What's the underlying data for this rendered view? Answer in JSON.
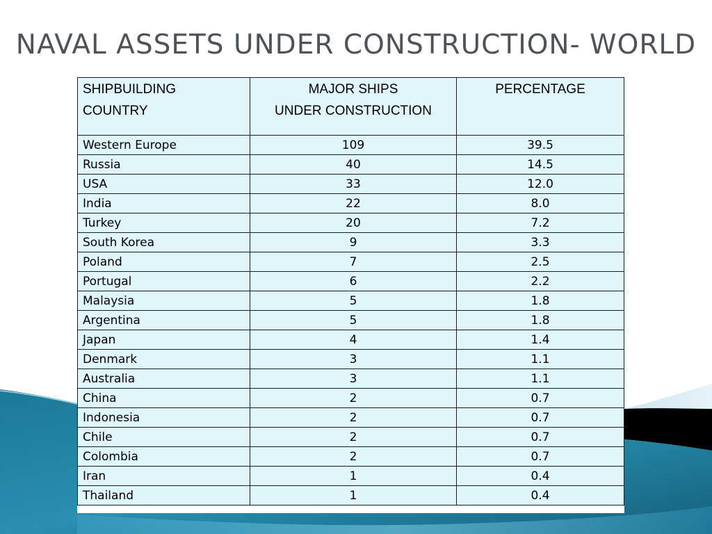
{
  "title": "NAVAL ASSETS UNDER CONSTRUCTION- WORLD",
  "colors": {
    "title": "#4f5358",
    "table_background": "#dff6fb",
    "table_border": "#1d1d1d",
    "wave_dark": "#1a6f8c",
    "wave_light": "#4fb4d4",
    "black_band": "#000000"
  },
  "table": {
    "headers": {
      "country": [
        "SHIPBUILDING",
        "COUNTRY"
      ],
      "ships": [
        "MAJOR SHIPS",
        "UNDER CONSTRUCTION"
      ],
      "percentage": [
        "PERCENTAGE"
      ]
    },
    "rows": [
      {
        "country": "Western Europe",
        "ships": "109",
        "percentage": "39.5"
      },
      {
        "country": "Russia",
        "ships": "40",
        "percentage": "14.5"
      },
      {
        "country": "USA",
        "ships": "33",
        "percentage": "12.0"
      },
      {
        "country": "India",
        "ships": "22",
        "percentage": "8.0"
      },
      {
        "country": "Turkey",
        "ships": "20",
        "percentage": "7.2"
      },
      {
        "country": "South Korea",
        "ships": "9",
        "percentage": "3.3"
      },
      {
        "country": "Poland",
        "ships": "7",
        "percentage": "2.5"
      },
      {
        "country": "Portugal",
        "ships": "6",
        "percentage": "2.2"
      },
      {
        "country": "Malaysia",
        "ships": "5",
        "percentage": "1.8"
      },
      {
        "country": "Argentina",
        "ships": "5",
        "percentage": "1.8"
      },
      {
        "country": "Japan",
        "ships": "4",
        "percentage": "1.4"
      },
      {
        "country": "Denmark",
        "ships": "3",
        "percentage": "1.1"
      },
      {
        "country": "Australia",
        "ships": "3",
        "percentage": "1.1"
      },
      {
        "country": "China",
        "ships": "2",
        "percentage": "0.7"
      },
      {
        "country": "Indonesia",
        "ships": "2",
        "percentage": "0.7"
      },
      {
        "country": "Chile",
        "ships": "2",
        "percentage": "0.7"
      },
      {
        "country": "Colombia",
        "ships": "2",
        "percentage": "0.7"
      },
      {
        "country": "Iran",
        "ships": "1",
        "percentage": "0.4"
      },
      {
        "country": "Thailand",
        "ships": "1",
        "percentage": "0.4"
      }
    ]
  }
}
